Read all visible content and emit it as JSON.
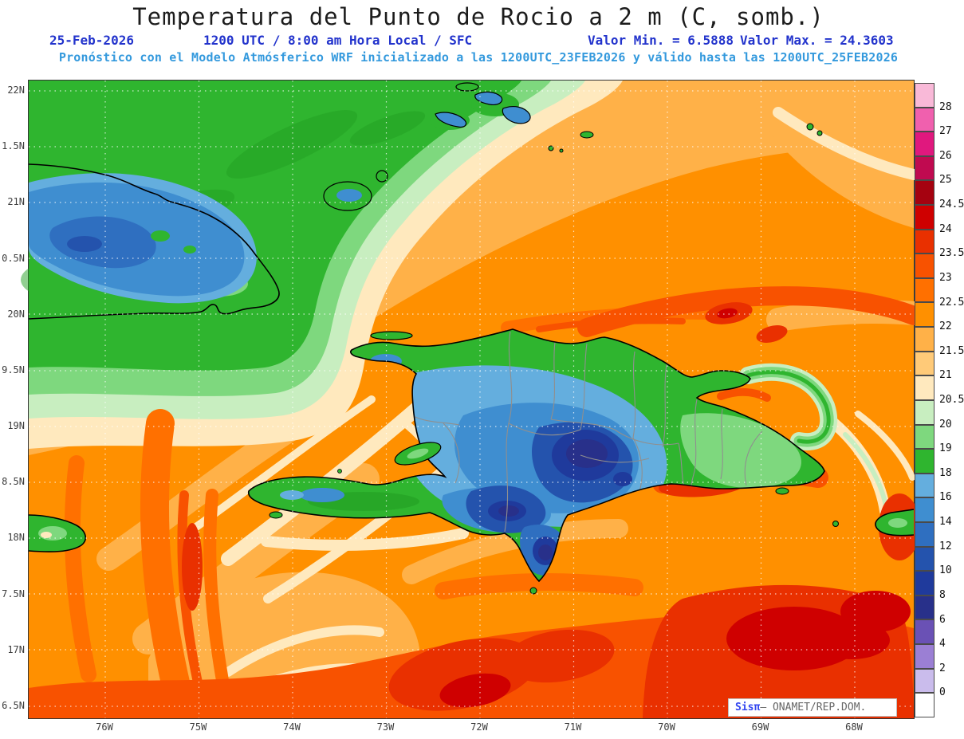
{
  "title": "Temperatura del Punto de Rocio a 2 m (C, somb.)",
  "header": {
    "date": "25-Feb-2026",
    "time": "1200 UTC / 8:00 am Hora Local / SFC",
    "min": "Valor Min. = 6.5888",
    "max": "Valor Max. = 24.3603",
    "model_line": "Pronóstico con el Modelo Atmósferico WRF inicializado a las 1200UTC_23FEB2026 y válido hasta las  1200UTC_25FEB2026"
  },
  "axes": {
    "y_ticks": [
      "22N",
      "1.5N",
      "21N",
      "0.5N",
      "20N",
      "9.5N",
      "19N",
      "8.5N",
      "18N",
      "7.5N",
      "17N",
      "6.5N"
    ],
    "x_ticks": [
      "76W",
      "75W",
      "74W",
      "73W",
      "72W",
      "71W",
      "70W",
      "69W",
      "68W"
    ]
  },
  "colorbar": {
    "labels": [
      "28",
      "27",
      "26",
      "25",
      "24.5",
      "24",
      "23.5",
      "23",
      "22.5",
      "22",
      "21.5",
      "21",
      "20.5",
      "20",
      "19",
      "18",
      "16",
      "14",
      "12",
      "10",
      "8",
      "6",
      "4",
      "2",
      "0"
    ],
    "colors": [
      "#f9b9d8",
      "#f060ae",
      "#e0187e",
      "#c00a50",
      "#a50210",
      "#cf0000",
      "#e93000",
      "#f85200",
      "#ff7000",
      "#ff9000",
      "#ffb148",
      "#ffca78",
      "#ffe9be",
      "#c8eec0",
      "#7ed87e",
      "#2fb52f",
      "#64aede",
      "#3f8ed0",
      "#2f6fc0",
      "#2453ad",
      "#1f3a9c",
      "#28308a",
      "#6a51b5",
      "#9b7fd4",
      "#cabcec",
      "#ffffff"
    ]
  },
  "watermark": {
    "brand": "Sisπ",
    "org": "— ONAMET/REP.DOM."
  },
  "palette": {
    "header_blue": "#2233cc",
    "model_blue": "#3399dd",
    "axis_text": "#3d3d3d",
    "coastline": "#000000",
    "province_border": "#8f8f8f"
  }
}
